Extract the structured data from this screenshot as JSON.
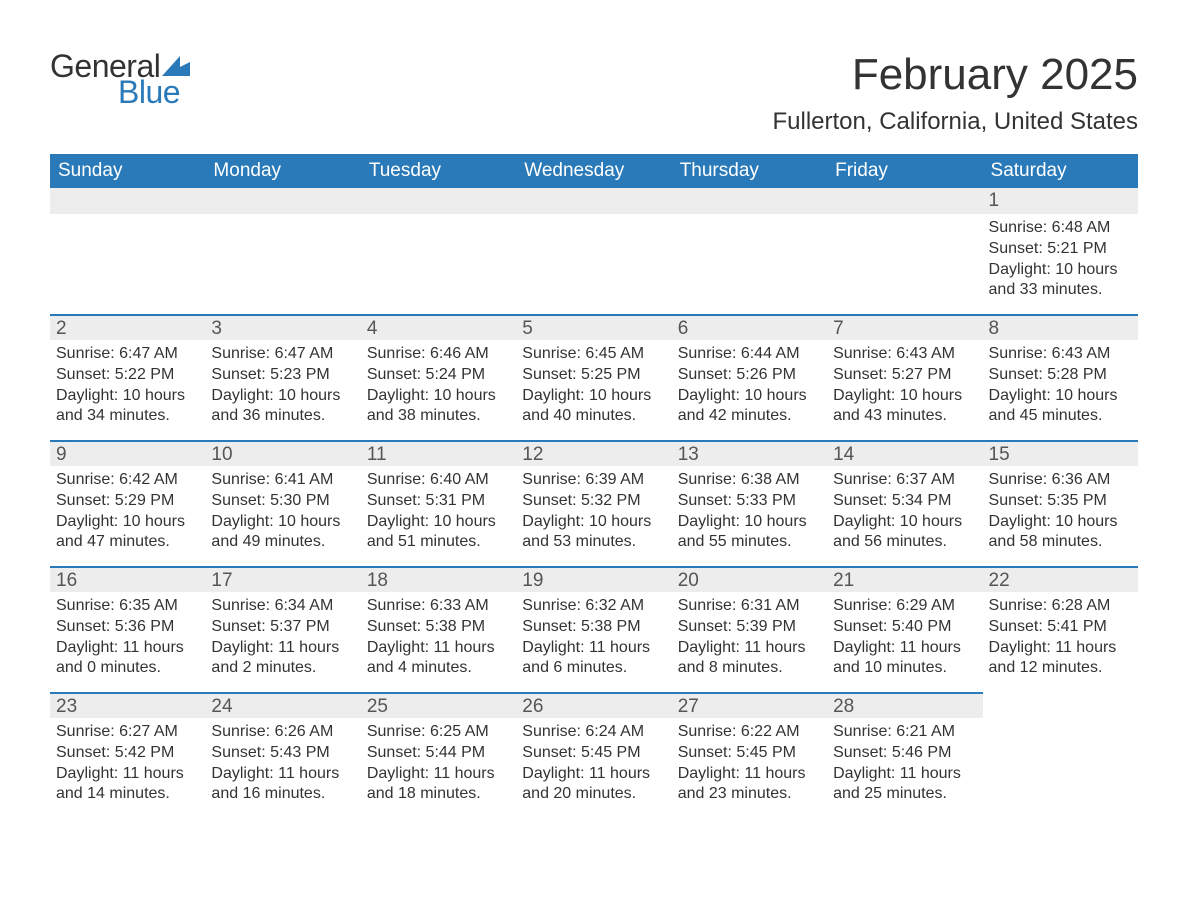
{
  "logo": {
    "general": "General",
    "blue": "Blue",
    "flag_color": "#2a7ab9"
  },
  "title": "February 2025",
  "location": "Fullerton, California, United States",
  "colors": {
    "header_bg": "#2a7ab9",
    "header_text": "#ffffff",
    "daynum_bg": "#ededed",
    "daynum_border": "#2a7ab9",
    "text": "#333333",
    "background": "#ffffff"
  },
  "typography": {
    "title_fontsize": 44,
    "location_fontsize": 24,
    "weekday_fontsize": 19,
    "daynum_fontsize": 19,
    "body_fontsize": 16,
    "font_family": "Arial"
  },
  "weekdays": [
    "Sunday",
    "Monday",
    "Tuesday",
    "Wednesday",
    "Thursday",
    "Friday",
    "Saturday"
  ],
  "weeks": [
    [
      {
        "empty": true
      },
      {
        "empty": true
      },
      {
        "empty": true
      },
      {
        "empty": true
      },
      {
        "empty": true
      },
      {
        "empty": true
      },
      {
        "num": "1",
        "sunrise": "Sunrise: 6:48 AM",
        "sunset": "Sunset: 5:21 PM",
        "daylight": "Daylight: 10 hours and 33 minutes."
      }
    ],
    [
      {
        "num": "2",
        "sunrise": "Sunrise: 6:47 AM",
        "sunset": "Sunset: 5:22 PM",
        "daylight": "Daylight: 10 hours and 34 minutes."
      },
      {
        "num": "3",
        "sunrise": "Sunrise: 6:47 AM",
        "sunset": "Sunset: 5:23 PM",
        "daylight": "Daylight: 10 hours and 36 minutes."
      },
      {
        "num": "4",
        "sunrise": "Sunrise: 6:46 AM",
        "sunset": "Sunset: 5:24 PM",
        "daylight": "Daylight: 10 hours and 38 minutes."
      },
      {
        "num": "5",
        "sunrise": "Sunrise: 6:45 AM",
        "sunset": "Sunset: 5:25 PM",
        "daylight": "Daylight: 10 hours and 40 minutes."
      },
      {
        "num": "6",
        "sunrise": "Sunrise: 6:44 AM",
        "sunset": "Sunset: 5:26 PM",
        "daylight": "Daylight: 10 hours and 42 minutes."
      },
      {
        "num": "7",
        "sunrise": "Sunrise: 6:43 AM",
        "sunset": "Sunset: 5:27 PM",
        "daylight": "Daylight: 10 hours and 43 minutes."
      },
      {
        "num": "8",
        "sunrise": "Sunrise: 6:43 AM",
        "sunset": "Sunset: 5:28 PM",
        "daylight": "Daylight: 10 hours and 45 minutes."
      }
    ],
    [
      {
        "num": "9",
        "sunrise": "Sunrise: 6:42 AM",
        "sunset": "Sunset: 5:29 PM",
        "daylight": "Daylight: 10 hours and 47 minutes."
      },
      {
        "num": "10",
        "sunrise": "Sunrise: 6:41 AM",
        "sunset": "Sunset: 5:30 PM",
        "daylight": "Daylight: 10 hours and 49 minutes."
      },
      {
        "num": "11",
        "sunrise": "Sunrise: 6:40 AM",
        "sunset": "Sunset: 5:31 PM",
        "daylight": "Daylight: 10 hours and 51 minutes."
      },
      {
        "num": "12",
        "sunrise": "Sunrise: 6:39 AM",
        "sunset": "Sunset: 5:32 PM",
        "daylight": "Daylight: 10 hours and 53 minutes."
      },
      {
        "num": "13",
        "sunrise": "Sunrise: 6:38 AM",
        "sunset": "Sunset: 5:33 PM",
        "daylight": "Daylight: 10 hours and 55 minutes."
      },
      {
        "num": "14",
        "sunrise": "Sunrise: 6:37 AM",
        "sunset": "Sunset: 5:34 PM",
        "daylight": "Daylight: 10 hours and 56 minutes."
      },
      {
        "num": "15",
        "sunrise": "Sunrise: 6:36 AM",
        "sunset": "Sunset: 5:35 PM",
        "daylight": "Daylight: 10 hours and 58 minutes."
      }
    ],
    [
      {
        "num": "16",
        "sunrise": "Sunrise: 6:35 AM",
        "sunset": "Sunset: 5:36 PM",
        "daylight": "Daylight: 11 hours and 0 minutes."
      },
      {
        "num": "17",
        "sunrise": "Sunrise: 6:34 AM",
        "sunset": "Sunset: 5:37 PM",
        "daylight": "Daylight: 11 hours and 2 minutes."
      },
      {
        "num": "18",
        "sunrise": "Sunrise: 6:33 AM",
        "sunset": "Sunset: 5:38 PM",
        "daylight": "Daylight: 11 hours and 4 minutes."
      },
      {
        "num": "19",
        "sunrise": "Sunrise: 6:32 AM",
        "sunset": "Sunset: 5:38 PM",
        "daylight": "Daylight: 11 hours and 6 minutes."
      },
      {
        "num": "20",
        "sunrise": "Sunrise: 6:31 AM",
        "sunset": "Sunset: 5:39 PM",
        "daylight": "Daylight: 11 hours and 8 minutes."
      },
      {
        "num": "21",
        "sunrise": "Sunrise: 6:29 AM",
        "sunset": "Sunset: 5:40 PM",
        "daylight": "Daylight: 11 hours and 10 minutes."
      },
      {
        "num": "22",
        "sunrise": "Sunrise: 6:28 AM",
        "sunset": "Sunset: 5:41 PM",
        "daylight": "Daylight: 11 hours and 12 minutes."
      }
    ],
    [
      {
        "num": "23",
        "sunrise": "Sunrise: 6:27 AM",
        "sunset": "Sunset: 5:42 PM",
        "daylight": "Daylight: 11 hours and 14 minutes."
      },
      {
        "num": "24",
        "sunrise": "Sunrise: 6:26 AM",
        "sunset": "Sunset: 5:43 PM",
        "daylight": "Daylight: 11 hours and 16 minutes."
      },
      {
        "num": "25",
        "sunrise": "Sunrise: 6:25 AM",
        "sunset": "Sunset: 5:44 PM",
        "daylight": "Daylight: 11 hours and 18 minutes."
      },
      {
        "num": "26",
        "sunrise": "Sunrise: 6:24 AM",
        "sunset": "Sunset: 5:45 PM",
        "daylight": "Daylight: 11 hours and 20 minutes."
      },
      {
        "num": "27",
        "sunrise": "Sunrise: 6:22 AM",
        "sunset": "Sunset: 5:45 PM",
        "daylight": "Daylight: 11 hours and 23 minutes."
      },
      {
        "num": "28",
        "sunrise": "Sunrise: 6:21 AM",
        "sunset": "Sunset: 5:46 PM",
        "daylight": "Daylight: 11 hours and 25 minutes."
      },
      {
        "empty": true,
        "noStrip": true
      }
    ]
  ]
}
